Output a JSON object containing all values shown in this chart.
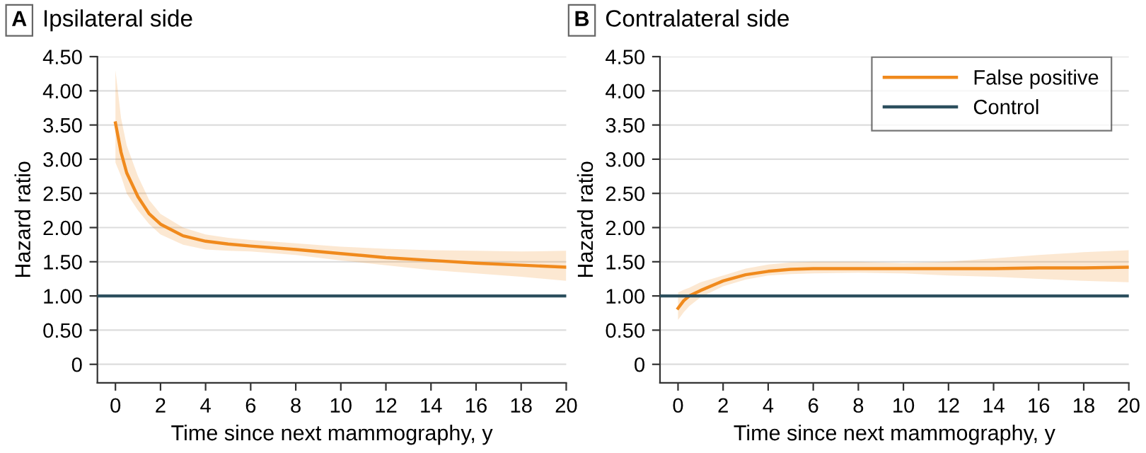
{
  "chart_data": [
    {
      "type": "line",
      "title": "Ipsilateral side",
      "annotations": [
        "A"
      ],
      "xlabel": "Time since next mammography, y",
      "ylabel": "Hazard ratio",
      "xlim": [
        -0.8,
        20
      ],
      "xticks": [
        0,
        2,
        4,
        6,
        8,
        10,
        12,
        14,
        16,
        18,
        20
      ],
      "ylim": [
        -0.27,
        4.5
      ],
      "yticks": [
        0,
        {
          "value": 0.5,
          "label": "0.50"
        },
        {
          "value": 1,
          "label": "1.00"
        },
        {
          "value": 1.5,
          "label": "1.50"
        },
        {
          "value": 2,
          "label": "2.00"
        },
        {
          "value": 2.5,
          "label": "2.50"
        },
        {
          "value": 3,
          "label": "3.00"
        },
        {
          "value": 3.5,
          "label": "3.50"
        },
        {
          "value": 4,
          "label": "4.00"
        },
        {
          "value": 4.5,
          "label": "4.50"
        }
      ],
      "grid": "y",
      "legend": false,
      "series": [
        {
          "color": "#f08a1d",
          "x": [
            0,
            0.25,
            0.5,
            1,
            1.5,
            2,
            3,
            4,
            5,
            6,
            8,
            10,
            12,
            14,
            16,
            18,
            20
          ],
          "values": [
            3.53,
            3.1,
            2.8,
            2.45,
            2.2,
            2.05,
            1.88,
            1.8,
            1.76,
            1.73,
            1.68,
            1.62,
            1.56,
            1.52,
            1.48,
            1.45,
            1.42
          ],
          "lower": [
            2.95,
            2.75,
            2.5,
            2.25,
            2.05,
            1.9,
            1.75,
            1.68,
            1.66,
            1.65,
            1.6,
            1.52,
            1.45,
            1.38,
            1.33,
            1.28,
            1.22
          ],
          "upper": [
            4.3,
            3.6,
            3.2,
            2.75,
            2.4,
            2.2,
            2.0,
            1.9,
            1.85,
            1.82,
            1.77,
            1.72,
            1.69,
            1.67,
            1.66,
            1.65,
            1.66
          ]
        },
        {
          "color": "#2c4f5e",
          "x": [
            -0.8,
            20
          ],
          "values": [
            1,
            1
          ]
        }
      ]
    },
    {
      "type": "line",
      "title": "Contralateral side",
      "annotations": [
        "B"
      ],
      "xlabel": "Time since next mammography, y",
      "ylabel": "Hazard ratio",
      "xlim": [
        -0.8,
        20
      ],
      "xticks": [
        0,
        2,
        4,
        6,
        8,
        10,
        12,
        14,
        16,
        18,
        20
      ],
      "ylim": [
        -0.27,
        4.5
      ],
      "yticks": [
        0,
        {
          "value": 0.5,
          "label": "0.50"
        },
        {
          "value": 1,
          "label": "1.00"
        },
        {
          "value": 1.5,
          "label": "1.50"
        },
        {
          "value": 2,
          "label": "2.00"
        },
        {
          "value": 2.5,
          "label": "2.50"
        },
        {
          "value": 3,
          "label": "3.00"
        },
        {
          "value": 3.5,
          "label": "3.50"
        },
        {
          "value": 4,
          "label": "4.00"
        },
        {
          "value": 4.5,
          "label": "4.50"
        }
      ],
      "grid": "y",
      "legend": "top right",
      "series": [
        {
          "name": "False positive",
          "color": "#f08a1d",
          "x": [
            0,
            0.25,
            0.5,
            1,
            2,
            3,
            4,
            5,
            6,
            8,
            10,
            12,
            14,
            16,
            18,
            20
          ],
          "values": [
            0.82,
            0.93,
            1.0,
            1.08,
            1.22,
            1.31,
            1.36,
            1.39,
            1.4,
            1.4,
            1.4,
            1.4,
            1.4,
            1.41,
            1.41,
            1.42
          ],
          "lower": [
            0.65,
            0.76,
            0.85,
            0.98,
            1.14,
            1.24,
            1.3,
            1.32,
            1.33,
            1.34,
            1.33,
            1.3,
            1.28,
            1.25,
            1.22,
            1.2
          ],
          "upper": [
            1.05,
            1.09,
            1.12,
            1.2,
            1.3,
            1.4,
            1.46,
            1.49,
            1.5,
            1.5,
            1.48,
            1.5,
            1.55,
            1.6,
            1.64,
            1.67
          ]
        },
        {
          "name": "Control",
          "color": "#2c4f5e",
          "x": [
            -0.8,
            20
          ],
          "values": [
            1,
            1
          ]
        }
      ]
    }
  ]
}
